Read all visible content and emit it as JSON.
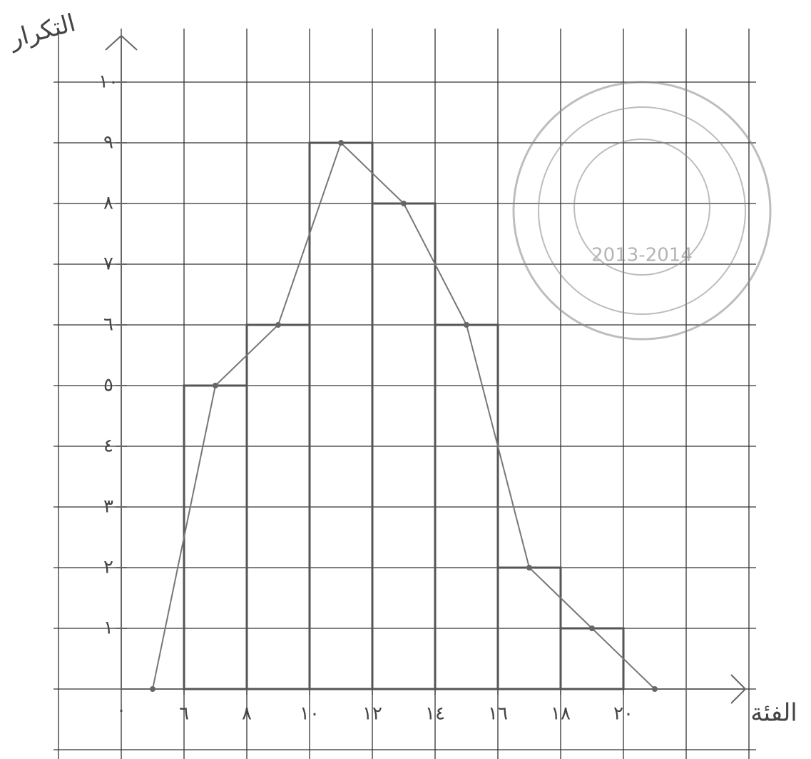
{
  "chart_data": {
    "type": "histogram",
    "y_label": "التكرار",
    "x_label": "الفئة",
    "origin_label": "٠",
    "bins": [
      6,
      8,
      10,
      12,
      14,
      16,
      18,
      20
    ],
    "values": [
      5,
      6,
      9,
      8,
      6,
      2,
      1
    ],
    "polygon": {
      "x": [
        5,
        7,
        9,
        11,
        13,
        15,
        17,
        19,
        21
      ],
      "values": [
        0,
        5,
        6,
        9,
        8,
        6,
        2,
        1,
        0
      ]
    },
    "xlim": [
      4,
      24
    ],
    "ylim": [
      0,
      11
    ],
    "xticks": [
      {
        "value": 6,
        "label": "٦"
      },
      {
        "value": 8,
        "label": "٨"
      },
      {
        "value": 10,
        "label": "١٠"
      },
      {
        "value": 12,
        "label": "١٢"
      },
      {
        "value": 14,
        "label": "١٤"
      },
      {
        "value": 16,
        "label": "١٦"
      },
      {
        "value": 18,
        "label": "١٨"
      },
      {
        "value": 20,
        "label": "٢٠"
      }
    ],
    "yticks": [
      {
        "value": 1,
        "label": "١"
      },
      {
        "value": 2,
        "label": "٢"
      },
      {
        "value": 3,
        "label": "٣"
      },
      {
        "value": 4,
        "label": "٤"
      },
      {
        "value": 5,
        "label": "٥"
      },
      {
        "value": 6,
        "label": "٦"
      },
      {
        "value": 7,
        "label": "٧"
      },
      {
        "value": 8,
        "label": "٨"
      },
      {
        "value": 9,
        "label": "٩"
      },
      {
        "value": 10,
        "label": "١٠"
      }
    ],
    "color": "#555555",
    "stamp": "2013-2014"
  }
}
